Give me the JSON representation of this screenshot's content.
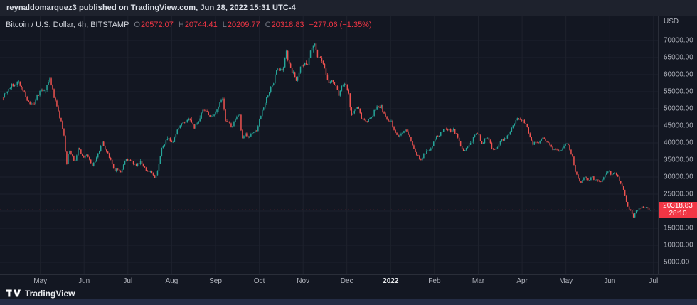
{
  "topbar": {
    "text": "reynaldomarquez3 published on TradingView.com, Jun 28, 2022 15:31 UTC-4"
  },
  "legend": {
    "symbol": "Bitcoin / U.S. Dollar, 4h, BITSTAMP",
    "ohlc": [
      {
        "label": "O",
        "value": "20572.07"
      },
      {
        "label": "H",
        "value": "20744.41"
      },
      {
        "label": "L",
        "value": "20209.77"
      },
      {
        "label": "C",
        "value": "20318.83"
      }
    ],
    "change": "−277.06 (−1.35%)"
  },
  "price_axis": {
    "currency": "USD",
    "labels": [
      "70000.00",
      "65000.00",
      "60000.00",
      "55000.00",
      "50000.00",
      "45000.00",
      "40000.00",
      "35000.00",
      "30000.00",
      "25000.00",
      "20000.00",
      "15000.00",
      "10000.00",
      "5000.00"
    ],
    "badge": {
      "price": "20318.83",
      "countdown": "28:10"
    }
  },
  "time_axis": {
    "labels": [
      {
        "m": 0,
        "text": "May"
      },
      {
        "m": 1,
        "text": "Jun"
      },
      {
        "m": 2,
        "text": "Jul"
      },
      {
        "m": 3,
        "text": "Aug"
      },
      {
        "m": 4,
        "text": "Sep"
      },
      {
        "m": 5,
        "text": "Oct"
      },
      {
        "m": 6,
        "text": "Nov"
      },
      {
        "m": 7,
        "text": "Dec"
      },
      {
        "m": 8,
        "text": "2022",
        "major": true
      },
      {
        "m": 9,
        "text": "Feb"
      },
      {
        "m": 10,
        "text": "Mar"
      },
      {
        "m": 11,
        "text": "Apr"
      },
      {
        "m": 12,
        "text": "May"
      },
      {
        "m": 13,
        "text": "Jun"
      },
      {
        "m": 14,
        "text": "Jul"
      }
    ]
  },
  "footer": {
    "brand": "TradingView"
  },
  "chart_data": {
    "type": "candlestick",
    "title": "Bitcoin / U.S. Dollar",
    "interval": "4h",
    "exchange": "BITSTAMP",
    "last": {
      "open": 20572.07,
      "high": 20744.41,
      "low": 20209.77,
      "close": 20318.83,
      "change": -277.06,
      "change_pct": -1.35
    },
    "ylim": [
      1450,
      77300
    ],
    "xlim_months": [
      -0.92,
      14.1
    ],
    "grid": {
      "y_min": 5000,
      "y_max": 70000,
      "y_step": 5000
    },
    "start_month": -0.85,
    "end_month": 13.93,
    "candles_per_month": 31,
    "seed": 7,
    "colors": {
      "bg": "#131722",
      "grid": "#1e222d",
      "up": "#26a69a",
      "down": "#ef5350",
      "price_line": "#f23645",
      "axis_text": "#b2b5be",
      "badge": "#f23645"
    },
    "price_path_anchors": [
      [
        -0.85,
        53500
      ],
      [
        -0.62,
        56800
      ],
      [
        -0.45,
        57900
      ],
      [
        -0.28,
        53000
      ],
      [
        -0.12,
        50800
      ],
      [
        0.0,
        54800
      ],
      [
        0.12,
        55500
      ],
      [
        0.25,
        58300
      ],
      [
        0.38,
        52000
      ],
      [
        0.5,
        46500
      ],
      [
        0.58,
        42000
      ],
      [
        0.63,
        33500
      ],
      [
        0.68,
        38000
      ],
      [
        0.75,
        36500
      ],
      [
        0.82,
        34200
      ],
      [
        0.9,
        38500
      ],
      [
        1.0,
        35700
      ],
      [
        1.1,
        36300
      ],
      [
        1.22,
        33400
      ],
      [
        1.32,
        35500
      ],
      [
        1.45,
        40300
      ],
      [
        1.52,
        38000
      ],
      [
        1.62,
        35500
      ],
      [
        1.72,
        31700
      ],
      [
        1.8,
        32500
      ],
      [
        1.88,
        30900
      ],
      [
        1.95,
        34700
      ],
      [
        2.0,
        35300
      ],
      [
        2.1,
        34600
      ],
      [
        2.22,
        33500
      ],
      [
        2.32,
        34500
      ],
      [
        2.45,
        32100
      ],
      [
        2.55,
        31500
      ],
      [
        2.65,
        29800
      ],
      [
        2.72,
        32200
      ],
      [
        2.8,
        38200
      ],
      [
        2.88,
        40100
      ],
      [
        2.95,
        41800
      ],
      [
        3.05,
        39800
      ],
      [
        3.15,
        43200
      ],
      [
        3.25,
        45600
      ],
      [
        3.35,
        46000
      ],
      [
        3.45,
        47100
      ],
      [
        3.55,
        44500
      ],
      [
        3.65,
        46800
      ],
      [
        3.75,
        50000
      ],
      [
        3.85,
        48800
      ],
      [
        3.95,
        47100
      ],
      [
        4.05,
        50000
      ],
      [
        4.15,
        51800
      ],
      [
        4.21,
        52800
      ],
      [
        4.24,
        46800
      ],
      [
        4.32,
        46100
      ],
      [
        4.4,
        45000
      ],
      [
        4.5,
        46900
      ],
      [
        4.58,
        48200
      ],
      [
        4.64,
        40800
      ],
      [
        4.72,
        42800
      ],
      [
        4.8,
        41500
      ],
      [
        4.88,
        42900
      ],
      [
        4.97,
        43800
      ],
      [
        5.05,
        47500
      ],
      [
        5.15,
        51500
      ],
      [
        5.25,
        54900
      ],
      [
        5.35,
        57400
      ],
      [
        5.42,
        61600
      ],
      [
        5.5,
        60800
      ],
      [
        5.58,
        62300
      ],
      [
        5.65,
        66600
      ],
      [
        5.72,
        62500
      ],
      [
        5.8,
        60700
      ],
      [
        5.87,
        58500
      ],
      [
        5.95,
        61300
      ],
      [
        6.05,
        62900
      ],
      [
        6.15,
        63300
      ],
      [
        6.22,
        67500
      ],
      [
        6.3,
        68700
      ],
      [
        6.38,
        64800
      ],
      [
        6.48,
        63800
      ],
      [
        6.55,
        60100
      ],
      [
        6.62,
        56900
      ],
      [
        6.7,
        58100
      ],
      [
        6.78,
        57100
      ],
      [
        6.85,
        54200
      ],
      [
        6.92,
        57300
      ],
      [
        7.0,
        56900
      ],
      [
        7.08,
        53700
      ],
      [
        7.13,
        47600
      ],
      [
        7.2,
        49400
      ],
      [
        7.28,
        50700
      ],
      [
        7.35,
        47800
      ],
      [
        7.42,
        46900
      ],
      [
        7.5,
        46500
      ],
      [
        7.58,
        47200
      ],
      [
        7.65,
        48900
      ],
      [
        7.73,
        50900
      ],
      [
        7.82,
        50600
      ],
      [
        7.9,
        47500
      ],
      [
        7.97,
        46300
      ],
      [
        8.05,
        46000
      ],
      [
        8.12,
        43400
      ],
      [
        8.2,
        41800
      ],
      [
        8.28,
        42600
      ],
      [
        8.35,
        43800
      ],
      [
        8.45,
        42100
      ],
      [
        8.55,
        38500
      ],
      [
        8.63,
        36400
      ],
      [
        8.72,
        35100
      ],
      [
        8.8,
        36700
      ],
      [
        8.88,
        37900
      ],
      [
        8.97,
        38500
      ],
      [
        9.05,
        41300
      ],
      [
        9.15,
        42500
      ],
      [
        9.25,
        44300
      ],
      [
        9.35,
        43500
      ],
      [
        9.45,
        44000
      ],
      [
        9.55,
        42100
      ],
      [
        9.62,
        39300
      ],
      [
        9.68,
        37100
      ],
      [
        9.75,
        38500
      ],
      [
        9.82,
        39200
      ],
      [
        9.9,
        41000
      ],
      [
        9.97,
        43200
      ],
      [
        10.05,
        41900
      ],
      [
        10.12,
        39400
      ],
      [
        10.2,
        41700
      ],
      [
        10.28,
        40800
      ],
      [
        10.35,
        38400
      ],
      [
        10.42,
        38100
      ],
      [
        10.5,
        39500
      ],
      [
        10.58,
        41100
      ],
      [
        10.65,
        40900
      ],
      [
        10.73,
        42900
      ],
      [
        10.8,
        44400
      ],
      [
        10.88,
        46900
      ],
      [
        10.95,
        47300
      ],
      [
        11.05,
        46300
      ],
      [
        11.12,
        45500
      ],
      [
        11.2,
        42600
      ],
      [
        11.28,
        39700
      ],
      [
        11.35,
        40200
      ],
      [
        11.42,
        40000
      ],
      [
        11.5,
        41400
      ],
      [
        11.58,
        40400
      ],
      [
        11.65,
        39500
      ],
      [
        11.73,
        38300
      ],
      [
        11.8,
        38600
      ],
      [
        11.88,
        37700
      ],
      [
        11.95,
        38500
      ],
      [
        12.03,
        39900
      ],
      [
        12.1,
        38900
      ],
      [
        12.18,
        35900
      ],
      [
        12.25,
        31100
      ],
      [
        12.3,
        30100
      ],
      [
        12.37,
        27800
      ],
      [
        12.42,
        29300
      ],
      [
        12.48,
        30100
      ],
      [
        12.55,
        29000
      ],
      [
        12.62,
        30300
      ],
      [
        12.68,
        29200
      ],
      [
        12.75,
        29000
      ],
      [
        12.82,
        28600
      ],
      [
        12.88,
        29500
      ],
      [
        12.95,
        31500
      ],
      [
        13.02,
        31800
      ],
      [
        13.08,
        30400
      ],
      [
        13.15,
        31400
      ],
      [
        13.22,
        29800
      ],
      [
        13.28,
        28400
      ],
      [
        13.35,
        26500
      ],
      [
        13.42,
        22500
      ],
      [
        13.47,
        20500
      ],
      [
        13.52,
        20300
      ],
      [
        13.57,
        18200
      ],
      [
        13.62,
        19600
      ],
      [
        13.68,
        20700
      ],
      [
        13.75,
        21200
      ],
      [
        13.82,
        20800
      ],
      [
        13.88,
        21300
      ],
      [
        13.93,
        20318.83
      ]
    ]
  }
}
